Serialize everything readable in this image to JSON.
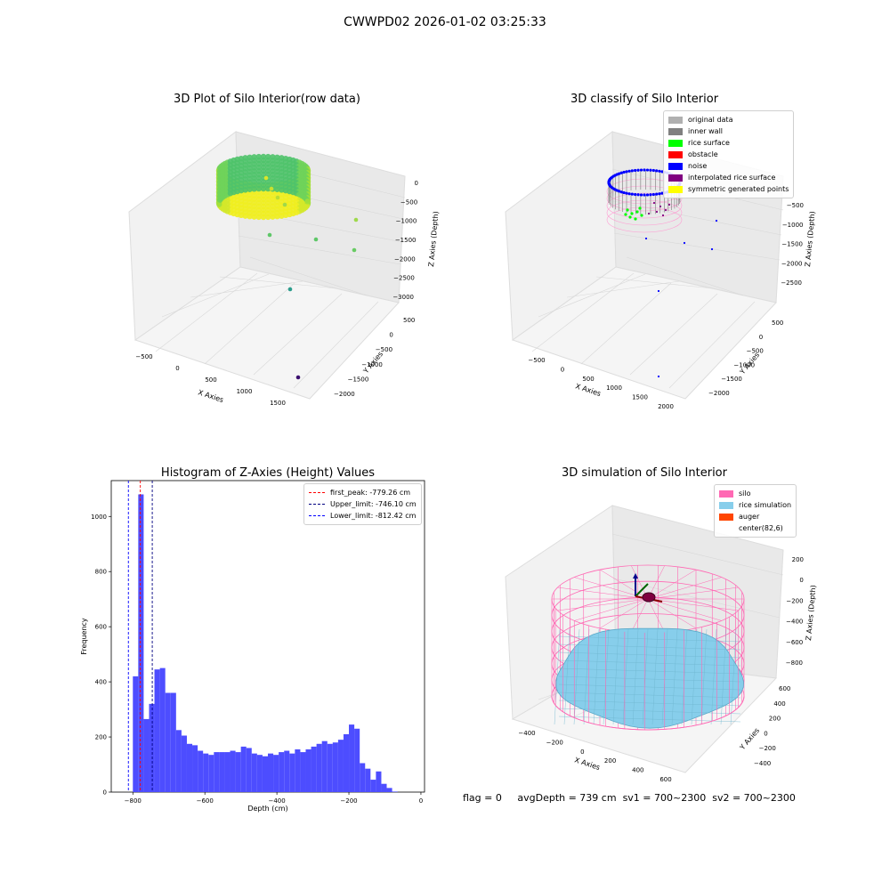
{
  "suptitle": "CWWPD02 2026-01-02 03:25:33",
  "status": {
    "flag": "flag = 0",
    "avg_depth": "avgDepth = 739 cm",
    "sv1": "sv1 = 700~2300",
    "sv2": "sv2 = 700~2300"
  },
  "colors": {
    "hist_bar": "#4d4dff",
    "silo": "#ff69b4",
    "rice": "#87ceeb",
    "auger": "#ff4500",
    "noise": "#0000ff",
    "rice_surface": "#00ff00",
    "obstacle": "#ff0000",
    "inner_wall": "#808080",
    "original_data": "#b0b0b0",
    "interpolated": "#800080",
    "symmetric": "#ffff00"
  },
  "chart_data": [
    {
      "type": "scatter",
      "title": "3D Plot of Silo Interior(row data)",
      "xlabel": "X Axies",
      "ylabel": "Y Axies",
      "zlabel": "Z Axies (Depth)",
      "x_ticks": [
        "−500",
        "0",
        "500",
        "1000",
        "1500"
      ],
      "y_ticks": [
        "500",
        "0",
        "−500",
        "−1000",
        "−1500",
        "−2000"
      ],
      "z_ticks": [
        "0",
        "−500",
        "−1000",
        "−1500",
        "−2000",
        "−2500",
        "−3000"
      ]
    },
    {
      "type": "scatter",
      "title": "3D classify of Silo Interior",
      "xlabel": "X Axies",
      "ylabel": "Y Axies",
      "zlabel": "Z Axies (Depth)",
      "x_ticks": [
        "−500",
        "0",
        "500",
        "1000",
        "1500",
        "2000"
      ],
      "y_ticks": [
        "500",
        "0",
        "−500",
        "−1000",
        "−1500",
        "−2000"
      ],
      "z_ticks": [
        "−500",
        "−1000",
        "−1500",
        "−2000",
        "−2500"
      ],
      "legend": [
        "original data",
        "inner wall",
        "rice surface",
        "obstacle",
        "noise",
        "interpolated rice surface",
        "symmetric generated points"
      ]
    },
    {
      "type": "bar",
      "title": "Histogram of Z-Axies (Height) Values",
      "xlabel": "Depth (cm)",
      "ylabel": "Frequency",
      "xlim": [
        -860,
        10
      ],
      "ylim": [
        0,
        1130
      ],
      "x_ticks": [
        -800,
        -600,
        -400,
        -200,
        0
      ],
      "x_tick_labels": [
        "−800",
        "−600",
        "−400",
        "−200",
        "0"
      ],
      "y_ticks": [
        0,
        200,
        400,
        600,
        800,
        1000
      ],
      "bin_start": -800,
      "bin_width": 15,
      "values": [
        420,
        1080,
        265,
        320,
        445,
        450,
        360,
        360,
        225,
        205,
        175,
        170,
        150,
        140,
        135,
        145,
        145,
        145,
        150,
        145,
        165,
        160,
        140,
        135,
        130,
        140,
        135,
        145,
        150,
        140,
        155,
        145,
        155,
        165,
        175,
        185,
        175,
        180,
        190,
        210,
        245,
        230,
        105,
        85,
        45,
        75,
        30,
        15,
        2
      ],
      "vlines": [
        {
          "label": "first_peak: -779.26 cm",
          "value": -779.26,
          "color": "#ff0000"
        },
        {
          "label": "Upper_limit: -746.10 cm",
          "value": -746.1,
          "color": "#000080"
        },
        {
          "label": "Lower_limit: -812.42 cm",
          "value": -812.42,
          "color": "#0000ff"
        }
      ]
    },
    {
      "type": "area",
      "title": "3D simulation of Silo Interior",
      "xlabel": "X Axies",
      "ylabel": "Y Axies",
      "zlabel": "Z Axies (Depth)",
      "x_ticks": [
        "−400",
        "−200",
        "0",
        "200",
        "400",
        "600"
      ],
      "y_ticks": [
        "600",
        "400",
        "200",
        "0",
        "−200",
        "−400"
      ],
      "z_ticks": [
        "200",
        "0",
        "−200",
        "−400",
        "−600",
        "−800"
      ],
      "legend": [
        "silo",
        "rice simulation",
        "auger",
        "center(82,6)"
      ]
    }
  ]
}
